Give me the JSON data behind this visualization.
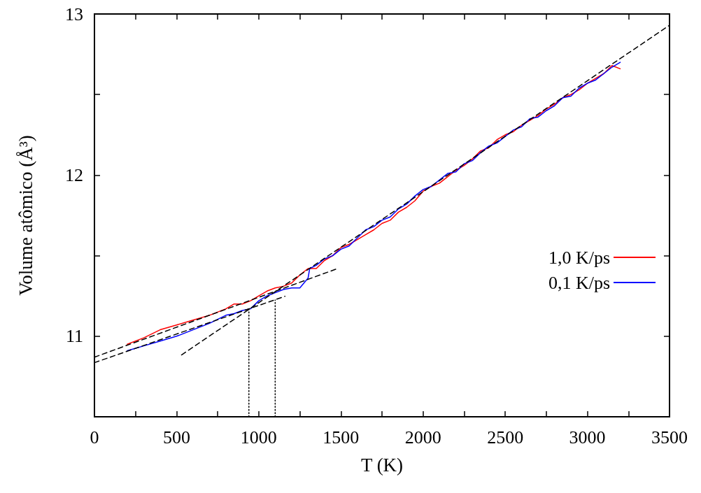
{
  "chart_data": {
    "type": "line",
    "xlabel": "T (K)",
    "ylabel": "Volume atômico (Å³)",
    "xlim": [
      0,
      3500
    ],
    "ylim": [
      10.5,
      13
    ],
    "xticks": [
      0,
      {
        "value": 250,
        "label": null
      },
      500,
      {
        "value": 750,
        "label": null
      },
      1000,
      {
        "value": 1250,
        "label": null
      },
      1500,
      {
        "value": 1750,
        "label": null
      },
      2000,
      {
        "value": 2250,
        "label": null
      },
      2500,
      {
        "value": 2750,
        "label": null
      },
      3000,
      {
        "value": 3250,
        "label": null
      },
      3500
    ],
    "yticks": [
      11,
      {
        "value": 11.5,
        "label": null
      },
      12,
      {
        "value": 12.5,
        "label": null
      },
      13
    ],
    "grid": false,
    "legend": "right",
    "marker": "none",
    "series": [
      {
        "name": "1,0 K/ps",
        "color": "#ff0000",
        "line_style": "solid",
        "x": [
          200,
          300,
          400,
          500,
          600,
          700,
          800,
          850,
          900,
          950,
          1000,
          1050,
          1100,
          1150,
          1200,
          1250,
          1300,
          1350,
          1400,
          1450,
          1500,
          1550,
          1600,
          1650,
          1700,
          1750,
          1800,
          1850,
          1900,
          1950,
          2000,
          2050,
          2100,
          2150,
          2200,
          2250,
          2300,
          2350,
          2400,
          2450,
          2500,
          2550,
          2600,
          2650,
          2700,
          2750,
          2800,
          2850,
          2900,
          2950,
          3000,
          3050,
          3100,
          3150,
          3200
        ],
        "values": [
          10.95,
          10.99,
          11.04,
          11.07,
          11.1,
          11.13,
          11.17,
          11.2,
          11.2,
          11.22,
          11.25,
          11.28,
          11.3,
          11.31,
          11.33,
          11.38,
          11.42,
          11.42,
          11.47,
          11.5,
          11.55,
          11.57,
          11.6,
          11.63,
          11.66,
          11.7,
          11.72,
          11.77,
          11.8,
          11.84,
          11.9,
          11.93,
          11.95,
          11.99,
          12.03,
          12.06,
          12.1,
          12.15,
          12.17,
          12.22,
          12.25,
          12.27,
          12.31,
          12.34,
          12.37,
          12.41,
          12.44,
          12.48,
          12.5,
          12.53,
          12.57,
          12.6,
          12.63,
          12.68,
          12.66
        ]
      },
      {
        "name": "0,1 K/ps",
        "color": "#0000ff",
        "line_style": "solid",
        "x": [
          200,
          300,
          400,
          500,
          600,
          700,
          800,
          850,
          900,
          950,
          1000,
          1050,
          1100,
          1150,
          1200,
          1250,
          1300,
          1310,
          1350,
          1400,
          1450,
          1500,
          1550,
          1600,
          1650,
          1700,
          1750,
          1800,
          1850,
          1900,
          1950,
          2000,
          2050,
          2100,
          2150,
          2200,
          2250,
          2300,
          2350,
          2400,
          2450,
          2500,
          2550,
          2600,
          2650,
          2700,
          2750,
          2800,
          2850,
          2900,
          2950,
          3000,
          3050,
          3100,
          3150,
          3200
        ],
        "values": [
          10.91,
          10.94,
          10.97,
          11.0,
          11.04,
          11.08,
          11.13,
          11.14,
          11.16,
          11.17,
          11.22,
          11.25,
          11.27,
          11.29,
          11.3,
          11.3,
          11.36,
          11.42,
          11.44,
          11.48,
          11.5,
          11.54,
          11.56,
          11.61,
          11.66,
          11.68,
          11.72,
          11.74,
          11.79,
          11.82,
          11.87,
          11.91,
          11.93,
          11.97,
          12.01,
          12.02,
          12.07,
          12.09,
          12.14,
          12.18,
          12.2,
          12.24,
          12.28,
          12.3,
          12.35,
          12.36,
          12.4,
          12.43,
          12.48,
          12.49,
          12.54,
          12.57,
          12.59,
          12.63,
          12.67,
          12.7
        ]
      },
      {
        "color": "#000000",
        "line_style": "dashed",
        "x": [
          0,
          1480
        ],
        "values": [
          10.87,
          11.42
        ]
      },
      {
        "color": "#000000",
        "line_style": "dashed",
        "x": [
          0,
          1160
        ],
        "values": [
          10.836,
          11.248
        ]
      },
      {
        "color": "#000000",
        "line_style": "dashed",
        "x": [
          530,
          3500
        ],
        "values": [
          10.884,
          12.93
        ]
      },
      {
        "color": "#000000",
        "line_style": "dotted",
        "x": [
          940,
          940
        ],
        "values": [
          10.5,
          11.17
        ]
      },
      {
        "color": "#000000",
        "line_style": "dotted",
        "x": [
          1100,
          1100
        ],
        "values": [
          10.5,
          11.225
        ]
      }
    ]
  }
}
